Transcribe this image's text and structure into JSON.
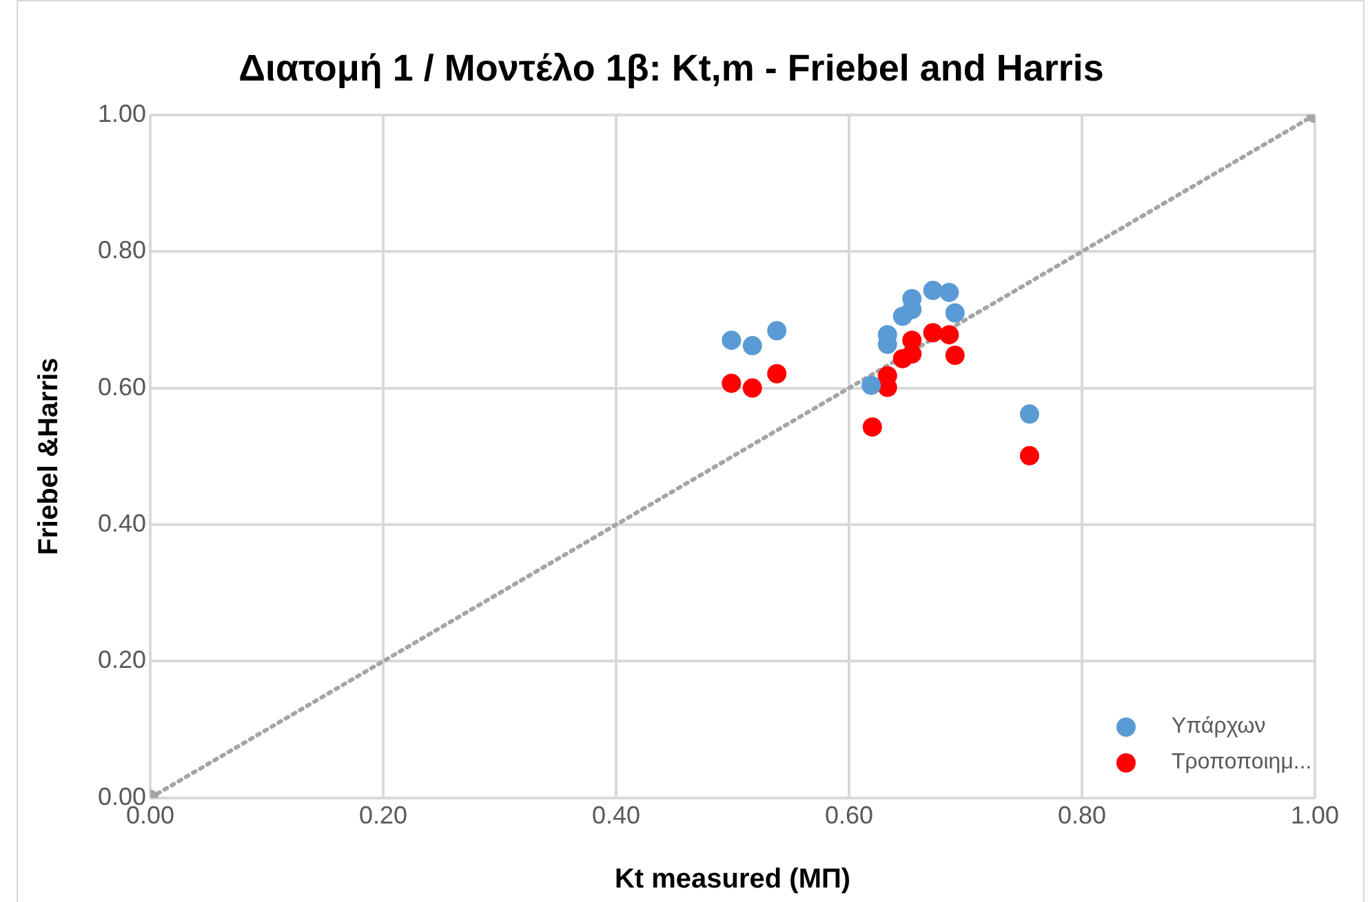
{
  "chart_data": {
    "type": "scatter",
    "title": "Διατομή 1 / Μοντέλο 1β: Kt,m - Friebel and Harris",
    "xlabel": "Kt measured (ΜΠ)",
    "ylabel": "Friebel &Harris",
    "series": [
      {
        "name": "Υπάρχων",
        "color": "#5b9bd5",
        "x": [
          0.499,
          0.517,
          0.538,
          0.633,
          0.633,
          0.619,
          0.646,
          0.654,
          0.654,
          0.672,
          0.686,
          0.691,
          0.755
        ],
        "values": [
          0.67,
          0.662,
          0.684,
          0.678,
          0.664,
          0.604,
          0.705,
          0.715,
          0.731,
          0.743,
          0.74,
          0.71,
          0.562
        ]
      },
      {
        "name": "Τροποποιημ...",
        "color": "#ff0000",
        "x": [
          0.499,
          0.517,
          0.538,
          0.633,
          0.633,
          0.62,
          0.646,
          0.654,
          0.654,
          0.672,
          0.686,
          0.691,
          0.755
        ],
        "values": [
          0.607,
          0.6,
          0.621,
          0.618,
          0.601,
          0.543,
          0.643,
          0.65,
          0.67,
          0.681,
          0.678,
          0.648,
          0.501
        ]
      },
      {
        "type": "line",
        "color": "#a5a5a5",
        "line_style": "dotted",
        "marker": "circle",
        "x": [
          0,
          1
        ],
        "values": [
          0,
          1
        ]
      }
    ],
    "marker": "circle",
    "xlim": [
      0,
      1
    ],
    "ylim": [
      0,
      1
    ],
    "xticks": [
      {
        "value": 0,
        "label": "0.00"
      },
      {
        "value": 0.2,
        "label": "0.20"
      },
      {
        "value": 0.4,
        "label": "0.40"
      },
      {
        "value": 0.6,
        "label": "0.60"
      },
      {
        "value": 0.8,
        "label": "0.80"
      },
      {
        "value": 1,
        "label": "1.00"
      }
    ],
    "yticks": [
      {
        "value": 0,
        "label": "0.00"
      },
      {
        "value": 0.2,
        "label": "0.20"
      },
      {
        "value": 0.4,
        "label": "0.40"
      },
      {
        "value": 0.6,
        "label": "0.60"
      },
      {
        "value": 0.8,
        "label": "0.80"
      },
      {
        "value": 1,
        "label": "1.00"
      }
    ],
    "grid": true,
    "legend": "bottom right"
  }
}
